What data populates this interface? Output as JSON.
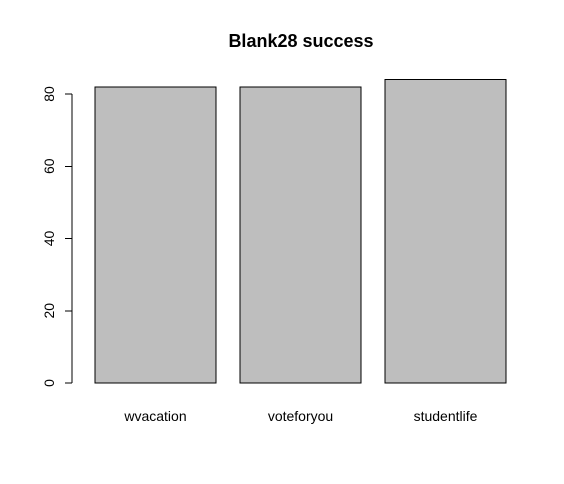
{
  "chart_data": {
    "type": "bar",
    "title": "Blank28 success",
    "xlabel": "",
    "ylabel": "",
    "categories": [
      "wvacation",
      "voteforyou",
      "studentlife"
    ],
    "values": [
      82,
      82,
      84
    ],
    "ylim": [
      0,
      84
    ],
    "yticks": [
      0,
      20,
      40,
      60,
      80
    ],
    "bar_color": "#bebebe",
    "bar_border_color": "#000000",
    "grid": false,
    "legend": "none"
  }
}
